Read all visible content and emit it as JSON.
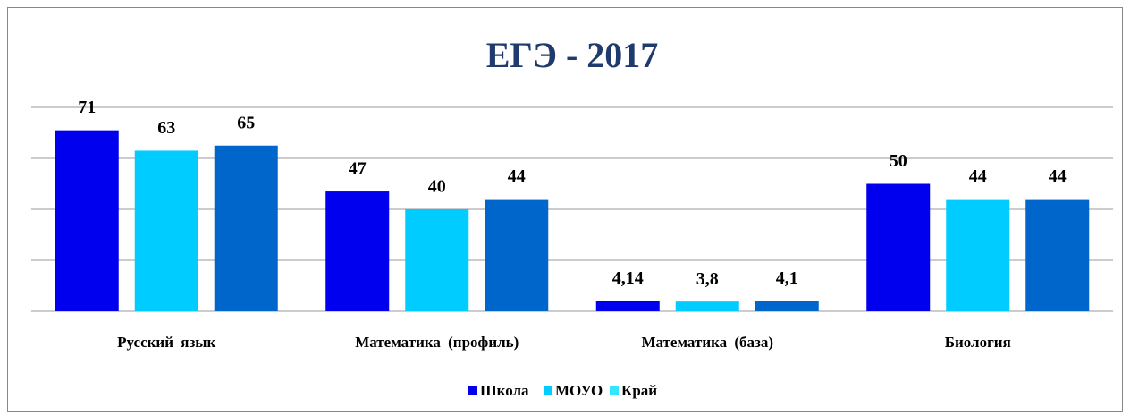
{
  "chart_data": {
    "type": "bar",
    "title": "ЕГЭ - 2017",
    "categories": [
      "Русский язык",
      "Математика (профиль)",
      "Математика (база)",
      "Биология"
    ],
    "series": [
      {
        "name": "Школа",
        "color": "#0000ee",
        "legend_color": "#0000ee",
        "values": [
          71,
          47,
          4.14,
          50
        ],
        "value_labels": [
          "71",
          "47",
          "4,14",
          "50"
        ]
      },
      {
        "name": "МОУО",
        "color": "#00ccff",
        "legend_color": "#00ccff",
        "values": [
          63,
          40,
          3.8,
          44
        ],
        "value_labels": [
          "63",
          "40",
          "3,8",
          "44"
        ]
      },
      {
        "name": "Край",
        "color": "#0066cc",
        "legend_color": "#33e6ff",
        "values": [
          65,
          44,
          4.1,
          44
        ],
        "value_labels": [
          "65",
          "44",
          "4,1",
          "44"
        ]
      }
    ],
    "ylim": [
      0,
      80
    ],
    "yticks": [
      0,
      20,
      40,
      60,
      80
    ],
    "grid": true,
    "legend": "bottom"
  }
}
